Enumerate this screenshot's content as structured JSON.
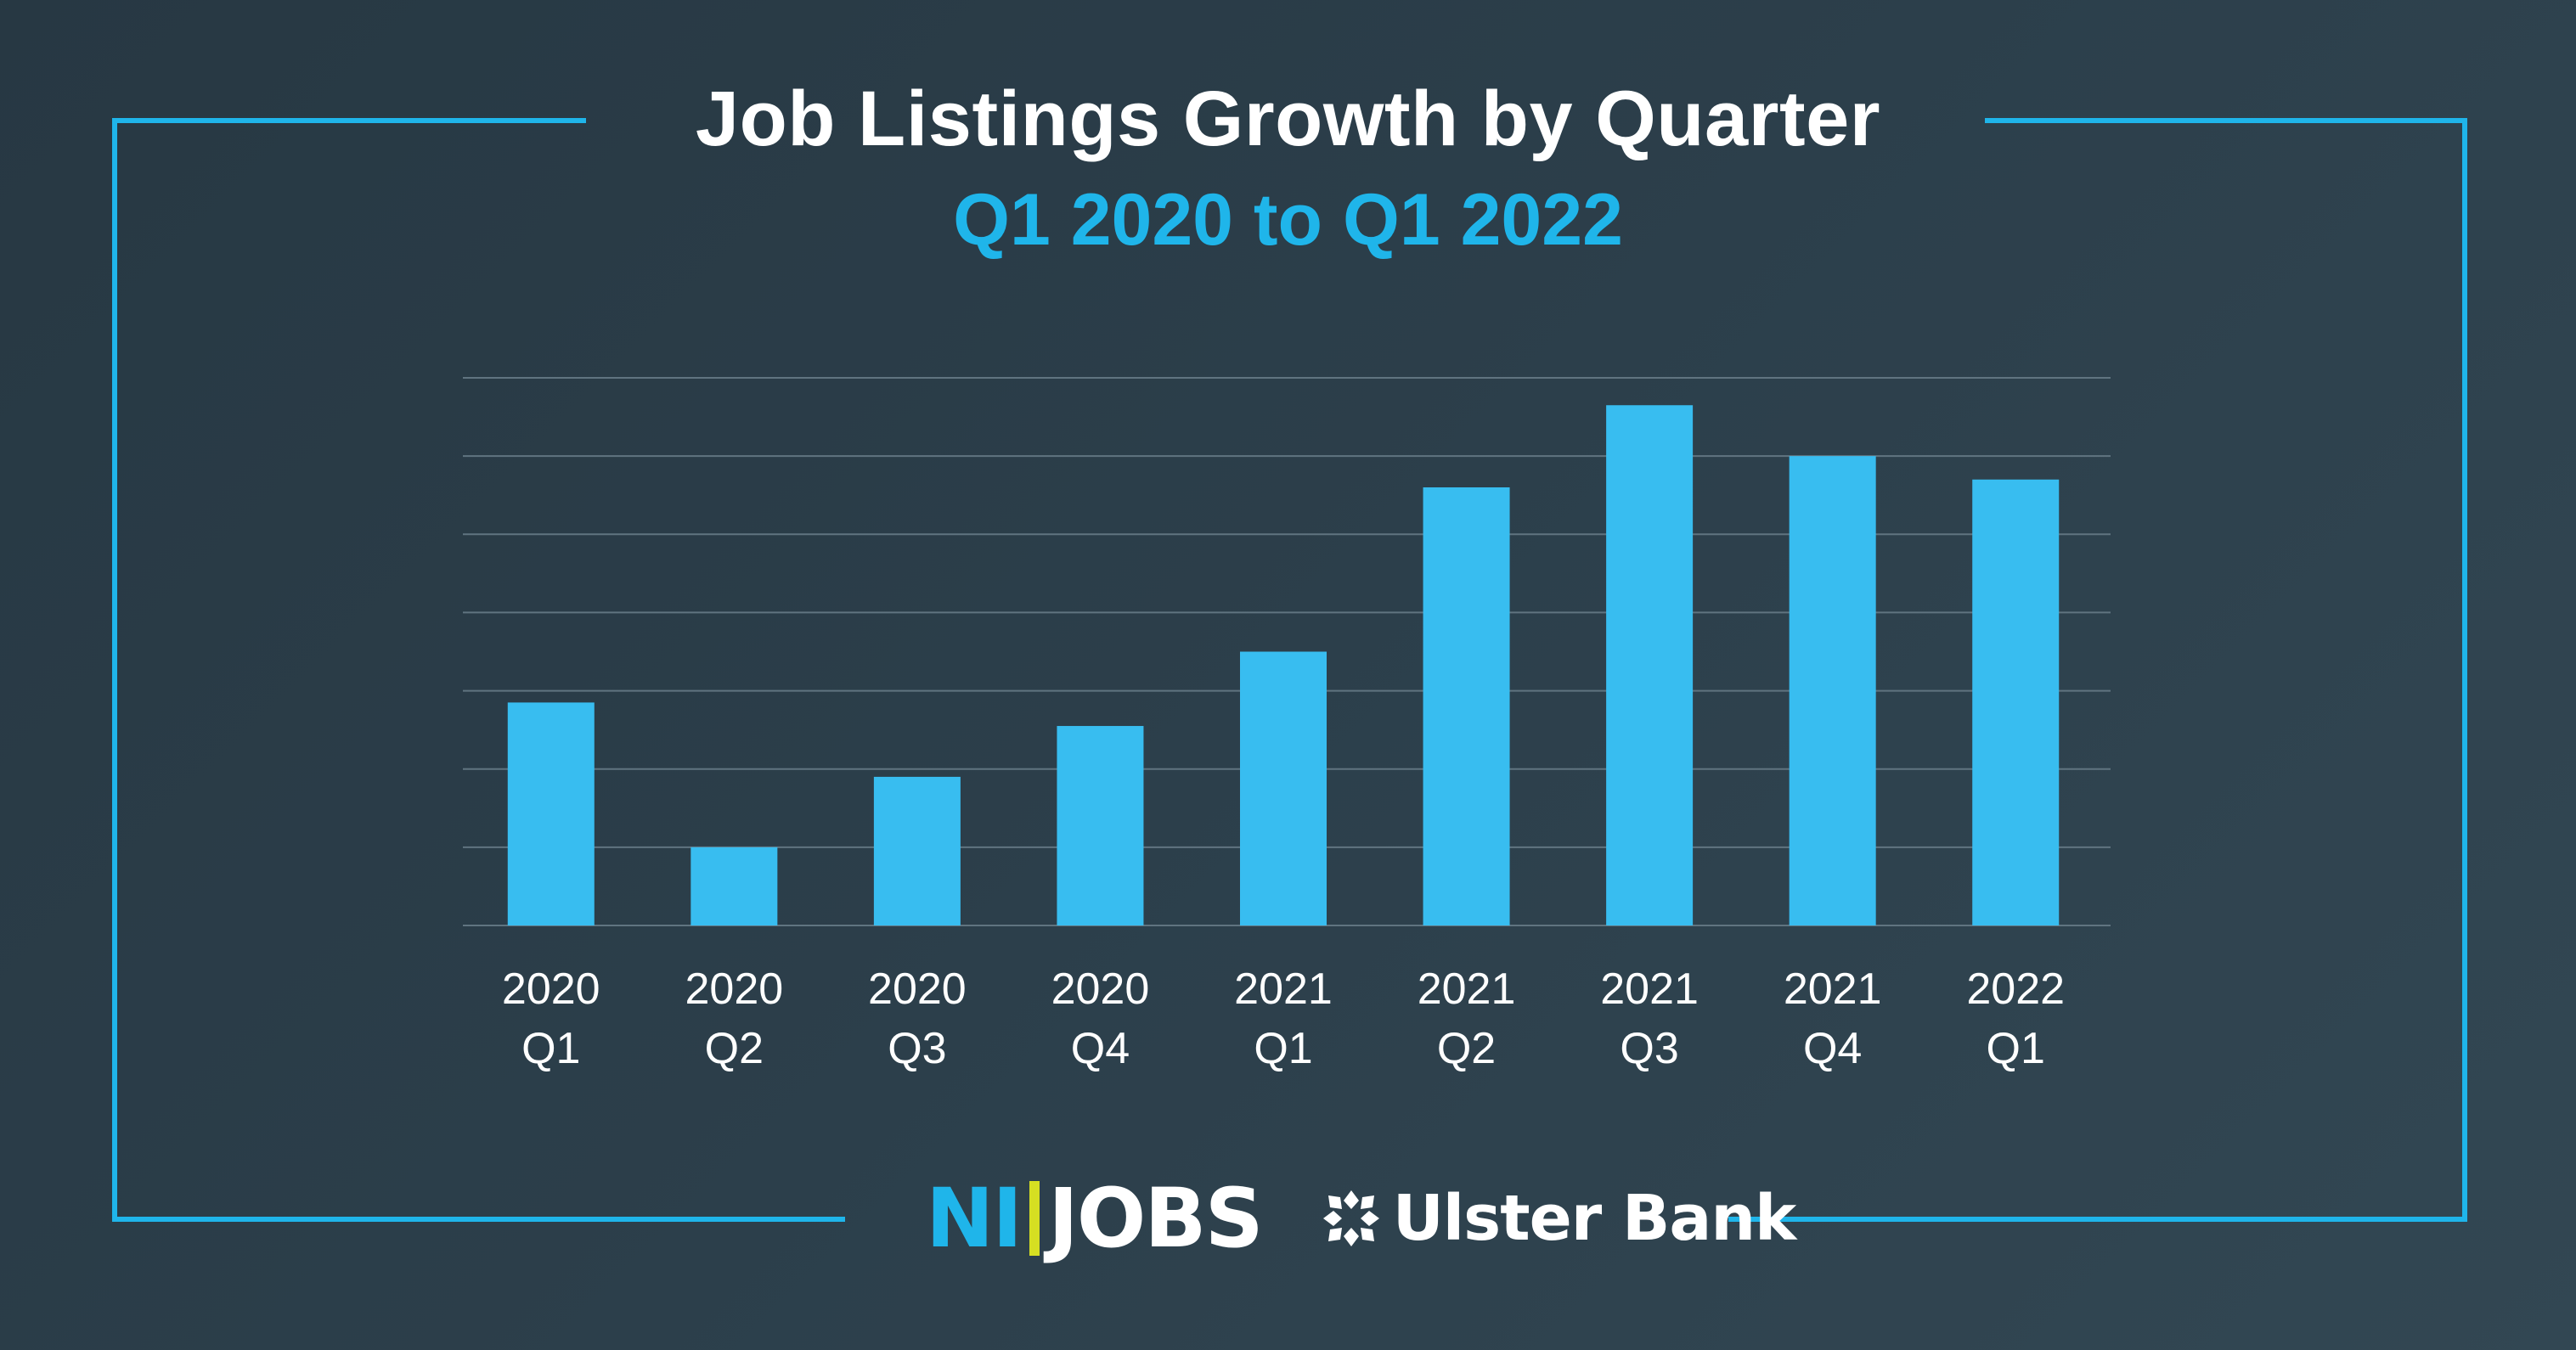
{
  "header": {
    "title": "Job Listings Growth by Quarter",
    "subtitle": "Q1 2020 to Q1 2022"
  },
  "chart_data": {
    "type": "bar",
    "title": "Job Listings Growth by Quarter",
    "subtitle": "Q1 2020 to Q1 2022",
    "categories": [
      "2020 Q1",
      "2020 Q2",
      "2020 Q3",
      "2020 Q4",
      "2021 Q1",
      "2021 Q2",
      "2021 Q3",
      "2021 Q4",
      "2022 Q1"
    ],
    "category_lines": [
      [
        "2020",
        "Q1"
      ],
      [
        "2020",
        "Q2"
      ],
      [
        "2020",
        "Q3"
      ],
      [
        "2020",
        "Q4"
      ],
      [
        "2021",
        "Q1"
      ],
      [
        "2021",
        "Q2"
      ],
      [
        "2021",
        "Q3"
      ],
      [
        "2021",
        "Q4"
      ],
      [
        "2022",
        "Q1"
      ]
    ],
    "values": [
      2.85,
      1.0,
      1.9,
      2.55,
      3.5,
      5.6,
      6.65,
      6.0,
      5.7
    ],
    "ylim": [
      0,
      7
    ],
    "gridlines": 8,
    "grid": true,
    "y_tick_labels_shown": false,
    "bar_color": "#38bdf0",
    "gridline_color": "#607480"
  },
  "colors": {
    "background": "#2c3f4b",
    "frame": "#1fb5ea",
    "title": "#ffffff",
    "subtitle": "#1fb5ea",
    "accent_yellow": "#d6df22"
  },
  "footer": {
    "nijobs_logo": {
      "ni": "NI",
      "jobs": "JOBS"
    },
    "ulster_logo": {
      "icon": "ulster-bank-symbol-icon",
      "text": "Ulster Bank"
    }
  }
}
